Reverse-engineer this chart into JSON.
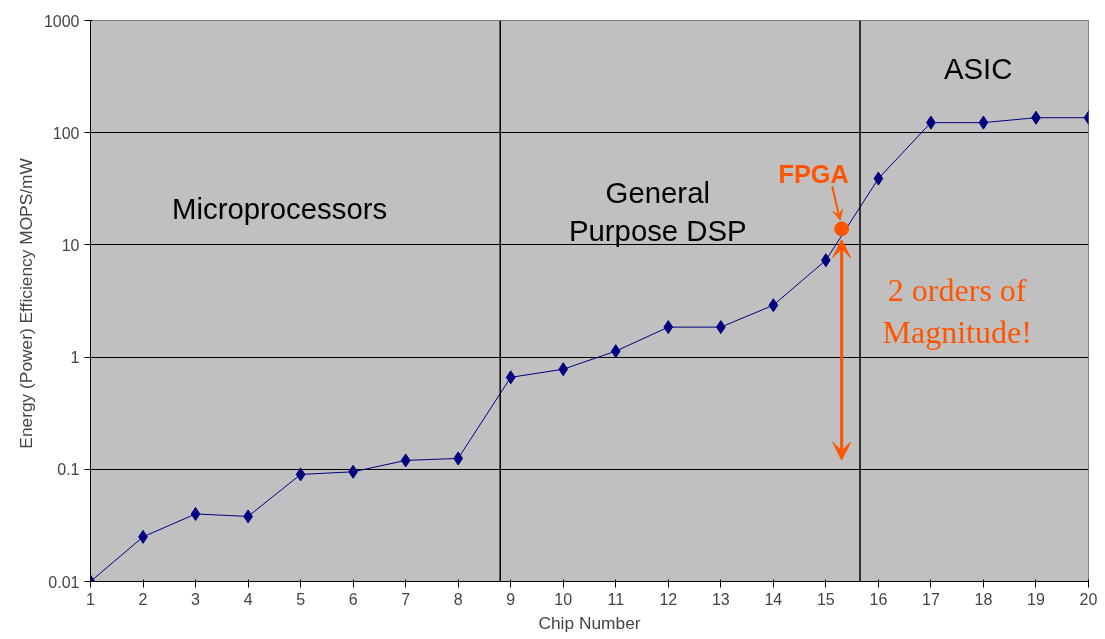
{
  "chart_data": {
    "type": "line",
    "xlabel": "Chip Number",
    "ylabel": "Energy (Power) Efficiency  MOPS/mW",
    "x": [
      1,
      2,
      3,
      4,
      5,
      6,
      7,
      8,
      9,
      10,
      11,
      12,
      13,
      14,
      15,
      16,
      17,
      18,
      19,
      20
    ],
    "series": [
      {
        "color": "#000080",
        "marker": "diamond",
        "values": [
          0.01,
          0.025,
          0.04,
          0.038,
          0.09,
          0.095,
          0.12,
          0.125,
          0.66,
          0.78,
          1.13,
          1.85,
          1.85,
          2.9,
          7.3,
          39,
          123,
          123,
          136,
          136
        ]
      },
      {
        "name": "FPGA",
        "type": "scatter",
        "color": "#ff5500",
        "marker": "circle",
        "x": [
          15.3
        ],
        "values": [
          13.9
        ]
      }
    ],
    "log": "y",
    "ylim": [
      0.01,
      1000
    ],
    "yticks": [
      0.01,
      0.1,
      1,
      10,
      100,
      1000
    ],
    "xlim": [
      1,
      20
    ],
    "xticks": [
      1,
      2,
      3,
      4,
      5,
      6,
      7,
      8,
      9,
      10,
      11,
      12,
      13,
      14,
      15,
      16,
      17,
      18,
      19,
      20
    ],
    "grid": "y",
    "ref_lines": [
      {
        "axis": "x",
        "value": 8.8,
        "color": "#000000"
      },
      {
        "axis": "x",
        "value": 15.65,
        "color": "#000000"
      }
    ],
    "annotations": [
      "Microprocessors",
      "General\nPurpose DSP",
      "ASIC",
      "2 orders of\nMagnitude!"
    ]
  }
}
